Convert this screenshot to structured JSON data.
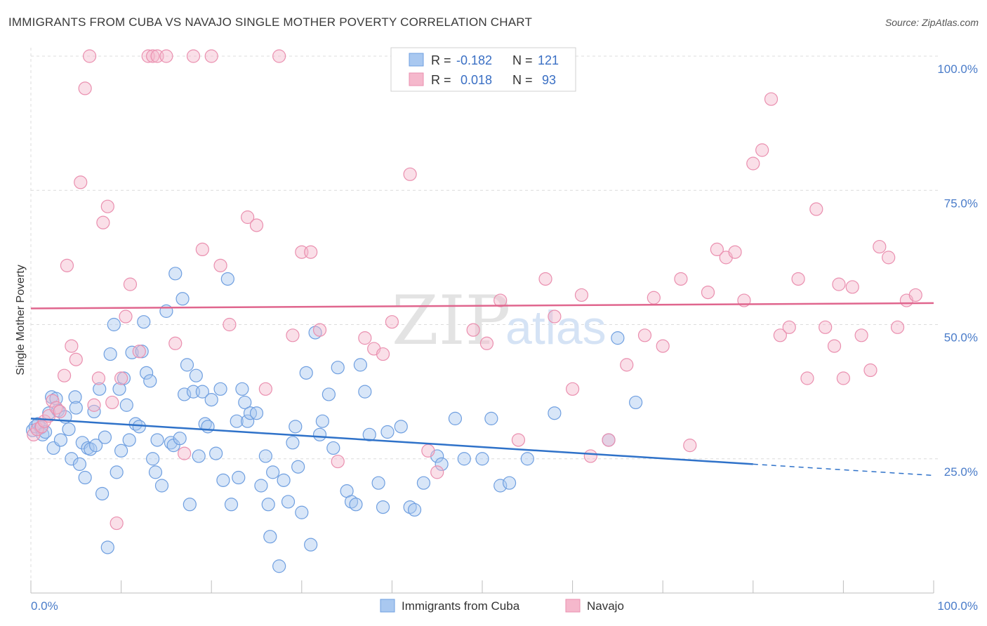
{
  "title": "IMMIGRANTS FROM CUBA VS NAVAJO SINGLE MOTHER POVERTY CORRELATION CHART",
  "source": "Source: ZipAtlas.com",
  "colors": {
    "blue_fill": "#a9c8f0",
    "blue_stroke": "#6f9fe0",
    "blue_line": "#2f72c9",
    "pink_fill": "#f5b8cc",
    "pink_stroke": "#ea8faf",
    "pink_line": "#e0668e",
    "grid": "#dcdcdc",
    "tick_text": "#4a7cc9"
  },
  "legend": {
    "rows": [
      {
        "r_label": "R =",
        "r_value": "-0.182",
        "n_label": "N =",
        "n_value": "121"
      },
      {
        "r_label": "R =",
        "r_value": "0.018",
        "n_label": "N =",
        "n_value": "93"
      }
    ]
  },
  "chart_data": {
    "type": "scatter",
    "xlabel": "",
    "ylabel": "Single Mother Poverty",
    "xlim": [
      0,
      100
    ],
    "ylim": [
      0,
      100
    ],
    "x_tick_labels": [
      "0.0%",
      "100.0%"
    ],
    "y_ticks": [
      25,
      50,
      75,
      100
    ],
    "y_tick_labels": [
      "25.0%",
      "50.0%",
      "75.0%",
      "100.0%"
    ],
    "grid": true,
    "legend_position": "top-center",
    "watermark": {
      "part1": "ZIP",
      "part2": "atlas"
    },
    "series": [
      {
        "name": "Immigrants from Cuba",
        "color": "blue",
        "trend": {
          "x": [
            0,
            80
          ],
          "y": [
            32.5,
            24.0
          ],
          "dashed_extension_to": [
            100,
            21.9
          ]
        },
        "points": [
          [
            0.2,
            30.3
          ],
          [
            0.5,
            31.0
          ],
          [
            0.8,
            31.5
          ],
          [
            1.1,
            30.8
          ],
          [
            1.3,
            29.5
          ],
          [
            1.6,
            30.0
          ],
          [
            2.0,
            33.5
          ],
          [
            2.3,
            36.5
          ],
          [
            2.5,
            27.0
          ],
          [
            2.8,
            36.2
          ],
          [
            3.0,
            34.0
          ],
          [
            3.3,
            28.5
          ],
          [
            3.8,
            32.8
          ],
          [
            4.2,
            30.5
          ],
          [
            4.5,
            25.0
          ],
          [
            4.9,
            36.5
          ],
          [
            5.0,
            34.5
          ],
          [
            5.4,
            24.0
          ],
          [
            5.7,
            28.0
          ],
          [
            6.0,
            21.5
          ],
          [
            6.3,
            27.0
          ],
          [
            6.6,
            26.8
          ],
          [
            7.0,
            33.8
          ],
          [
            7.2,
            27.5
          ],
          [
            7.6,
            38.0
          ],
          [
            7.9,
            18.5
          ],
          [
            8.2,
            29.0
          ],
          [
            8.5,
            8.5
          ],
          [
            8.8,
            44.5
          ],
          [
            9.2,
            50.0
          ],
          [
            9.5,
            22.5
          ],
          [
            9.8,
            38.0
          ],
          [
            10.0,
            26.5
          ],
          [
            10.3,
            40.0
          ],
          [
            10.6,
            35.0
          ],
          [
            10.9,
            28.5
          ],
          [
            11.2,
            44.8
          ],
          [
            11.6,
            31.5
          ],
          [
            12.0,
            31.0
          ],
          [
            12.3,
            45.0
          ],
          [
            12.5,
            50.5
          ],
          [
            12.8,
            41.0
          ],
          [
            13.2,
            39.5
          ],
          [
            13.5,
            25.0
          ],
          [
            13.8,
            22.5
          ],
          [
            14.0,
            28.5
          ],
          [
            14.5,
            20.0
          ],
          [
            15.0,
            52.5
          ],
          [
            15.5,
            28.0
          ],
          [
            15.8,
            27.5
          ],
          [
            16.0,
            59.5
          ],
          [
            16.5,
            28.8
          ],
          [
            16.8,
            54.8
          ],
          [
            17.0,
            37.0
          ],
          [
            17.3,
            42.5
          ],
          [
            17.6,
            16.5
          ],
          [
            18.0,
            37.5
          ],
          [
            18.3,
            40.5
          ],
          [
            18.6,
            25.5
          ],
          [
            19.0,
            37.5
          ],
          [
            19.3,
            31.5
          ],
          [
            19.6,
            31.0
          ],
          [
            20.0,
            36.0
          ],
          [
            20.5,
            26.0
          ],
          [
            21.0,
            38.0
          ],
          [
            21.3,
            21.0
          ],
          [
            21.8,
            58.5
          ],
          [
            22.2,
            16.5
          ],
          [
            22.8,
            32.0
          ],
          [
            23.0,
            21.5
          ],
          [
            23.4,
            38.0
          ],
          [
            23.7,
            35.5
          ],
          [
            24.0,
            32.0
          ],
          [
            24.3,
            33.5
          ],
          [
            25.0,
            33.5
          ],
          [
            25.5,
            20.0
          ],
          [
            26.0,
            25.5
          ],
          [
            26.3,
            16.5
          ],
          [
            26.5,
            10.5
          ],
          [
            26.8,
            22.5
          ],
          [
            27.5,
            5.0
          ],
          [
            28.0,
            21.0
          ],
          [
            28.5,
            17.0
          ],
          [
            29.0,
            28.0
          ],
          [
            29.3,
            31.0
          ],
          [
            29.6,
            23.5
          ],
          [
            30.0,
            15.0
          ],
          [
            30.5,
            41.0
          ],
          [
            31.0,
            9.0
          ],
          [
            31.5,
            48.5
          ],
          [
            32.0,
            29.5
          ],
          [
            32.3,
            32.0
          ],
          [
            33.0,
            37.0
          ],
          [
            33.5,
            27.0
          ],
          [
            34.0,
            42.0
          ],
          [
            35.0,
            19.0
          ],
          [
            35.5,
            17.0
          ],
          [
            36.0,
            16.5
          ],
          [
            36.5,
            42.5
          ],
          [
            37.0,
            37.5
          ],
          [
            37.5,
            29.5
          ],
          [
            38.5,
            20.5
          ],
          [
            39.0,
            16.0
          ],
          [
            39.5,
            30.0
          ],
          [
            41.0,
            31.0
          ],
          [
            42.0,
            16.0
          ],
          [
            42.5,
            15.5
          ],
          [
            43.5,
            20.5
          ],
          [
            45.0,
            25.5
          ],
          [
            45.5,
            24.0
          ],
          [
            47.0,
            32.5
          ],
          [
            48.0,
            25.0
          ],
          [
            50.0,
            25.0
          ],
          [
            51.0,
            32.5
          ],
          [
            52.0,
            20.0
          ],
          [
            53.0,
            20.5
          ],
          [
            55.0,
            25.0
          ],
          [
            58.0,
            33.5
          ],
          [
            64.0,
            28.5
          ],
          [
            65.0,
            47.5
          ],
          [
            67.0,
            35.5
          ]
        ]
      },
      {
        "name": "Navajo",
        "color": "pink",
        "trend": {
          "x": [
            0,
            100
          ],
          "y": [
            53.0,
            54.0
          ]
        },
        "points": [
          [
            0.3,
            29.5
          ],
          [
            0.7,
            30.5
          ],
          [
            1.2,
            31.0
          ],
          [
            1.5,
            32.0
          ],
          [
            2.0,
            33.0
          ],
          [
            2.4,
            35.8
          ],
          [
            2.8,
            34.5
          ],
          [
            3.2,
            33.8
          ],
          [
            3.7,
            40.5
          ],
          [
            4.0,
            61.0
          ],
          [
            4.5,
            46.0
          ],
          [
            5.0,
            43.5
          ],
          [
            5.5,
            76.5
          ],
          [
            6.0,
            94.0
          ],
          [
            6.5,
            100.0
          ],
          [
            7.0,
            35.0
          ],
          [
            7.5,
            40.0
          ],
          [
            8.0,
            69.0
          ],
          [
            8.5,
            72.0
          ],
          [
            9.0,
            35.5
          ],
          [
            9.5,
            13.0
          ],
          [
            10.0,
            40.0
          ],
          [
            10.5,
            51.5
          ],
          [
            11.0,
            57.5
          ],
          [
            12.0,
            45.0
          ],
          [
            13.0,
            100.0
          ],
          [
            13.5,
            100.0
          ],
          [
            14.0,
            100.0
          ],
          [
            15.0,
            100.0
          ],
          [
            16.0,
            46.5
          ],
          [
            17.0,
            26.0
          ],
          [
            18.0,
            100.0
          ],
          [
            19.0,
            64.0
          ],
          [
            20.0,
            100.0
          ],
          [
            21.0,
            61.0
          ],
          [
            22.0,
            50.0
          ],
          [
            24.0,
            70.0
          ],
          [
            25.0,
            68.5
          ],
          [
            26.0,
            38.0
          ],
          [
            27.5,
            100.0
          ],
          [
            29.0,
            48.0
          ],
          [
            30.0,
            63.5
          ],
          [
            31.0,
            63.5
          ],
          [
            32.0,
            49.0
          ],
          [
            34.0,
            24.5
          ],
          [
            37.0,
            47.5
          ],
          [
            38.0,
            45.5
          ],
          [
            39.0,
            44.5
          ],
          [
            40.0,
            50.5
          ],
          [
            42.0,
            78.0
          ],
          [
            44.0,
            26.5
          ],
          [
            45.0,
            22.5
          ],
          [
            49.0,
            49.0
          ],
          [
            50.5,
            46.5
          ],
          [
            52.0,
            54.5
          ],
          [
            54.0,
            28.5
          ],
          [
            57.0,
            58.5
          ],
          [
            58.0,
            51.5
          ],
          [
            60.0,
            38.0
          ],
          [
            61.0,
            55.5
          ],
          [
            62.0,
            25.5
          ],
          [
            64.0,
            28.5
          ],
          [
            66.0,
            42.5
          ],
          [
            68.0,
            48.0
          ],
          [
            69.0,
            55.0
          ],
          [
            70.0,
            46.0
          ],
          [
            72.0,
            58.5
          ],
          [
            73.0,
            27.5
          ],
          [
            75.0,
            56.0
          ],
          [
            76.0,
            64.0
          ],
          [
            77.0,
            62.5
          ],
          [
            78.0,
            63.5
          ],
          [
            79.0,
            54.5
          ],
          [
            80.0,
            80.0
          ],
          [
            81.0,
            82.5
          ],
          [
            82.0,
            92.0
          ],
          [
            83.0,
            48.0
          ],
          [
            84.0,
            49.5
          ],
          [
            85.0,
            58.5
          ],
          [
            86.0,
            40.0
          ],
          [
            87.0,
            71.5
          ],
          [
            88.0,
            49.5
          ],
          [
            89.0,
            46.0
          ],
          [
            89.5,
            57.5
          ],
          [
            90.0,
            40.0
          ],
          [
            91.0,
            57.0
          ],
          [
            92.0,
            48.0
          ],
          [
            93.0,
            41.5
          ],
          [
            94.0,
            64.5
          ],
          [
            95.0,
            62.5
          ],
          [
            96.0,
            49.5
          ],
          [
            97.0,
            54.5
          ],
          [
            98.0,
            55.5
          ]
        ]
      }
    ]
  },
  "bottom_legend": {
    "items": [
      {
        "label": "Immigrants from Cuba"
      },
      {
        "label": "Navajo"
      }
    ]
  }
}
